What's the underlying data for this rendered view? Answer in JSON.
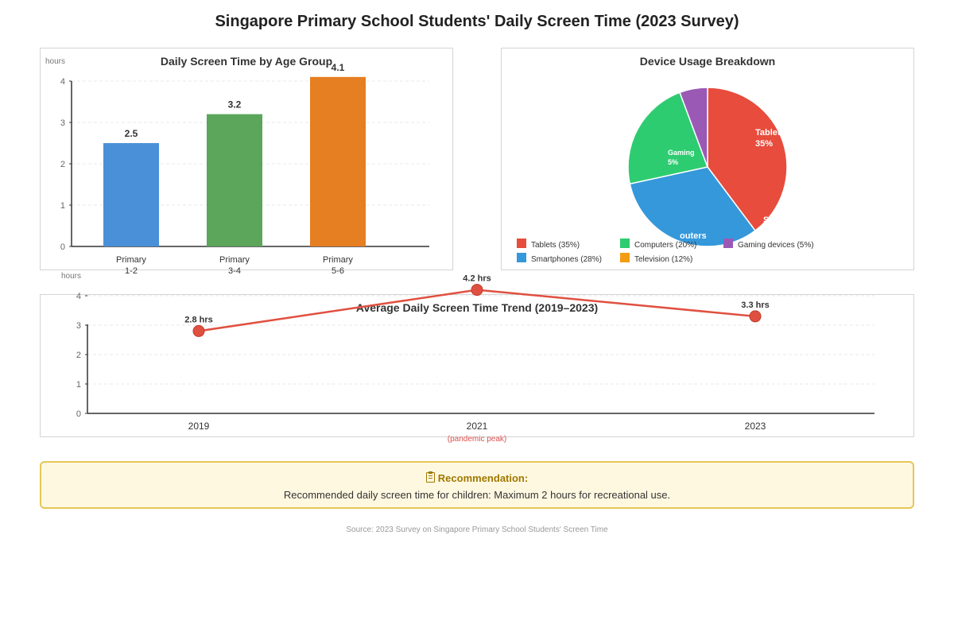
{
  "title": "Singapore Primary School Students' Daily Screen Time (2023 Survey)",
  "chart_data": [
    {
      "type": "bar",
      "title": "Daily Screen Time by Age Group",
      "ylabel": "hours",
      "categories": [
        [
          "Primary",
          "1-2"
        ],
        [
          "Primary",
          "3-4"
        ],
        [
          "Primary",
          "5-6"
        ]
      ],
      "values": [
        2.5,
        3.2,
        4.1
      ],
      "value_labels": [
        "2.5",
        "3.2",
        "4.1"
      ],
      "colors": [
        "#4a90d9",
        "#5ba65b",
        "#e67e22"
      ],
      "ylim": [
        0,
        4
      ],
      "yticks": [
        "0",
        "1",
        "2",
        "3",
        "4"
      ],
      "grid": true
    },
    {
      "type": "pie",
      "title": "Device Usage Breakdown",
      "slices": [
        {
          "label": "Tablets",
          "value": 35,
          "slice_label": "Tablets",
          "pct_label": "35%",
          "legend": "Tablets (35%)",
          "color": "#e74c3c"
        },
        {
          "label": "Smartphones",
          "value": 28,
          "slice_label": "S",
          "pct_label": "",
          "legend": "Smartphones (28%)",
          "color": "#3498db"
        },
        {
          "label": "Computers",
          "value": 20,
          "slice_label": "outers",
          "pct_label": "",
          "legend": "Computers (20%)",
          "color": "#2ecc71"
        },
        {
          "label": "Gaming devices",
          "value": 5,
          "slice_label": "Gaming",
          "pct_label": "5%",
          "legend": "Gaming devices (5%)",
          "color": "#9b59b6"
        },
        {
          "label": "Television",
          "value": 12,
          "slice_label": "",
          "pct_label": "",
          "legend": "Television (12%)",
          "color": "#f39c12"
        }
      ],
      "legend_placement": "bottom"
    },
    {
      "type": "line",
      "title": "Average Daily Screen Time Trend (2019–2023)",
      "ylabel": "hours",
      "x": [
        "2019",
        "2021",
        "2023"
      ],
      "x_notes": [
        "",
        "(pandemic peak)",
        ""
      ],
      "series": [
        {
          "values": [
            2.8,
            4.2,
            3.3
          ],
          "point_labels": [
            "2.8 hrs",
            "4.2 hrs",
            "3.3 hrs"
          ],
          "color": "#e05040"
        }
      ],
      "ylim": [
        0,
        4
      ],
      "yticks": [
        "0",
        "1",
        "2",
        "3",
        "4"
      ],
      "grid": true
    }
  ],
  "recommendation": {
    "icon": "clipboard-icon",
    "title": "Recommendation:",
    "text": "Recommended daily screen time for children: Maximum 2 hours for recreational use."
  },
  "source": "Source: 2023 Survey on Singapore Primary School Students' Screen Time"
}
